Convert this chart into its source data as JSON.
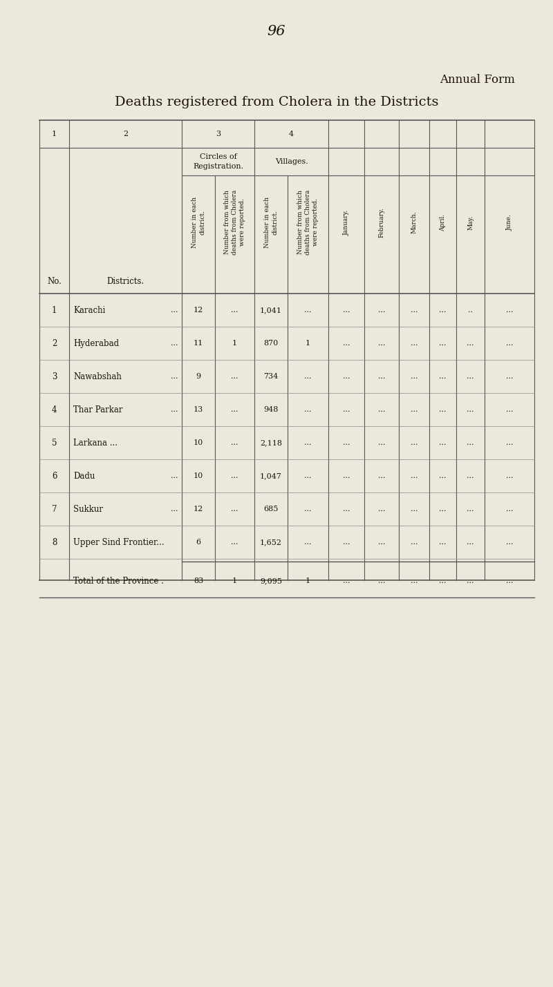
{
  "page_number": "96",
  "title_annual": "Annual Form",
  "title_main": "Deaths registered from Cholera in the Districts",
  "background_color": "#ede8dc",
  "text_color": "#1a1208",
  "line_color": "#555555",
  "districts": [
    {
      "no": "1",
      "name": "Karachi",
      "name_dots": "...",
      "col2_dots": "...",
      "circles_each": "12",
      "circles_rep": "...",
      "villages_each": "1,041",
      "villages_rep": "...",
      "jan": "...",
      "feb": "...",
      "mar": "...",
      "apr": "...",
      "may": "..",
      "june": "..."
    },
    {
      "no": "2",
      "name": "Hyderabad",
      "name_dots": "...",
      "col2_dots": "",
      "circles_each": "11",
      "circles_rep": "1",
      "villages_each": "870",
      "villages_rep": "1",
      "jan": "...",
      "feb": "...",
      "mar": "...",
      "apr": "...",
      "may": "...",
      "june": "..."
    },
    {
      "no": "3",
      "name": "Nawabshah",
      "name_dots": "...",
      "col2_dots": "",
      "circles_each": "9",
      "circles_rep": "...",
      "villages_each": "734",
      "villages_rep": "...",
      "jan": "...",
      "feb": "...",
      "mar": "...",
      "apr": "...",
      "may": "...",
      "june": "..."
    },
    {
      "no": "4",
      "name": "Thar Parkar",
      "name_dots": "...",
      "col2_dots": "",
      "circles_each": "13",
      "circles_rep": "...",
      "villages_each": "948",
      "villages_rep": "...",
      "jan": "...",
      "feb": "...",
      "mar": "...",
      "apr": "...",
      "may": "...",
      "june": "..."
    },
    {
      "no": "5",
      "name": "Larkana ...",
      "name_dots": "",
      "col2_dots": "...",
      "circles_each": "10",
      "circles_rep": "...",
      "villages_each": "2,118",
      "villages_rep": "...",
      "jan": "...",
      "feb": "...",
      "mar": "...",
      "apr": "...",
      "may": "...",
      "june": "..."
    },
    {
      "no": "6",
      "name": "Dadu",
      "name_dots": "...",
      "col2_dots": "...",
      "circles_each": "10",
      "circles_rep": "...",
      "villages_each": "1,047",
      "villages_rep": "...",
      "jan": "...",
      "feb": "...",
      "mar": "...",
      "apr": "...",
      "may": "...",
      "june": "..."
    },
    {
      "no": "7",
      "name": "Sukkur",
      "name_dots": "...",
      "col2_dots": "...",
      "circles_each": "12",
      "circles_rep": "...",
      "villages_each": "685",
      "villages_rep": "...",
      "jan": "...",
      "feb": "...",
      "mar": "...",
      "apr": "...",
      "may": "...",
      "june": "..."
    },
    {
      "no": "8",
      "name": "Upper Sind Frontier...",
      "name_dots": "",
      "col2_dots": "",
      "circles_each": "6",
      "circles_rep": "...",
      "villages_each": "1,652",
      "villages_rep": "...",
      "jan": "...",
      "feb": "...",
      "mar": "...",
      "apr": "...",
      "may": "...",
      "june": "..."
    }
  ],
  "total": {
    "label": "Total of the Province .",
    "circles_each": "83",
    "circles_rep": "1",
    "villages_each": "9,095",
    "villages_rep": "1",
    "jan": "...",
    "feb": "...",
    "mar": "...",
    "apr": "...",
    "may": "...",
    "june": "..."
  }
}
